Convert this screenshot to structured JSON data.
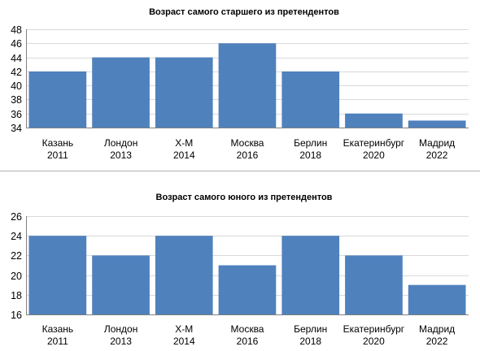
{
  "colors": {
    "bar": "#4f81bd",
    "grid": "#d9d9d9",
    "axis": "#808080",
    "separator": "#b0b0b0"
  },
  "chart_data": [
    {
      "type": "bar",
      "title": "Возраст самого  старшего из претендентов",
      "categories": [
        "Казань 2011",
        "Лондон 2013",
        "Х-М 2014",
        "Москва 2016",
        "Берлин 2018",
        "Екатеринбург 2020",
        "Мадрид 2022"
      ],
      "category_lines": [
        [
          "Казань",
          "2011"
        ],
        [
          "Лондон",
          "2013"
        ],
        [
          "Х-М",
          "2014"
        ],
        [
          "Москва",
          "2016"
        ],
        [
          "Берлин",
          "2018"
        ],
        [
          "Екатеринбург",
          "2020"
        ],
        [
          "Мадрид",
          "2022"
        ]
      ],
      "values": [
        42,
        44,
        44,
        46,
        42,
        36,
        35
      ],
      "yticks": [
        34,
        36,
        38,
        40,
        42,
        44,
        46,
        48
      ],
      "ylim": [
        34,
        48
      ],
      "xlabel": "",
      "ylabel": "",
      "grid": true,
      "legend": "none"
    },
    {
      "type": "bar",
      "title": "Возраст самого  юного из претендентов",
      "categories": [
        "Казань 2011",
        "Лондон 2013",
        "Х-М 2014",
        "Москва 2016",
        "Берлин 2018",
        "Екатеринбург 2020",
        "Мадрид 2022"
      ],
      "category_lines": [
        [
          "Казань",
          "2011"
        ],
        [
          "Лондон",
          "2013"
        ],
        [
          "Х-М",
          "2014"
        ],
        [
          "Москва",
          "2016"
        ],
        [
          "Берлин",
          "2018"
        ],
        [
          "Екатеринбург",
          "2020"
        ],
        [
          "Мадрид",
          "2022"
        ]
      ],
      "values": [
        24,
        22,
        24,
        21,
        24,
        22,
        19
      ],
      "yticks": [
        16,
        18,
        20,
        22,
        24,
        26
      ],
      "ylim": [
        16,
        26
      ],
      "xlabel": "",
      "ylabel": "",
      "grid": true,
      "legend": "none"
    }
  ]
}
